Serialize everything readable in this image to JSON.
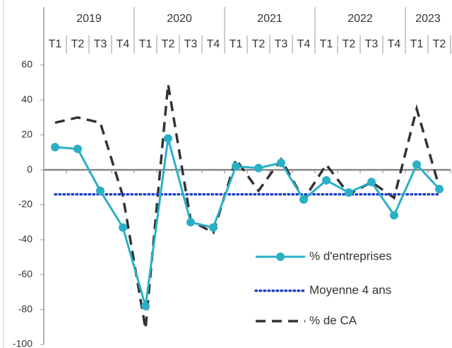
{
  "chart_data": {
    "type": "line",
    "year_labels": [
      "2019",
      "2020",
      "2021",
      "2022",
      "2023"
    ],
    "categories": [
      "T1",
      "T2",
      "T3",
      "T4",
      "T1",
      "T2",
      "T3",
      "T4",
      "T1",
      "T2",
      "T3",
      "T4",
      "T1",
      "T2",
      "T3",
      "T4",
      "T1",
      "T2"
    ],
    "series": [
      {
        "name": "% d'entreprises",
        "color": "#2ab0c5",
        "style": "solid-marker",
        "values": [
          13,
          12,
          -12,
          -33,
          -78,
          18,
          -30,
          -33,
          2,
          1,
          4,
          -17,
          -6,
          -13,
          -7,
          -26,
          3,
          -11
        ]
      },
      {
        "name": "Moyenne 4 ans",
        "color": "#1f3fbf",
        "style": "dotted",
        "values": [
          -14,
          -14,
          -14,
          -14,
          -14,
          -14,
          -14,
          -14,
          -14,
          -14,
          -14,
          -14,
          -14,
          -14,
          -14,
          -14,
          -14,
          -14
        ]
      },
      {
        "name": "% de CA",
        "color": "#333333",
        "style": "dashed",
        "values": [
          27,
          30,
          27,
          -15,
          -91,
          49,
          -29,
          -36,
          6,
          -12,
          6,
          -17,
          3,
          -14,
          -7,
          -16,
          35,
          -10
        ]
      }
    ],
    "ylim": [
      -100,
      60
    ],
    "yticks": [
      -100,
      -80,
      -60,
      -40,
      -20,
      0,
      20,
      40,
      60
    ],
    "grid": false,
    "legend": "bottom-right"
  }
}
